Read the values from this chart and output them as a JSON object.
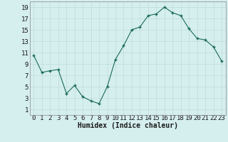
{
  "x": [
    0,
    1,
    2,
    3,
    4,
    5,
    6,
    7,
    8,
    9,
    10,
    11,
    12,
    13,
    14,
    15,
    16,
    17,
    18,
    19,
    20,
    21,
    22,
    23
  ],
  "y": [
    10.5,
    7.5,
    7.8,
    8.0,
    3.8,
    5.2,
    3.2,
    2.5,
    2.0,
    5.0,
    9.8,
    12.2,
    15.0,
    15.5,
    17.5,
    17.8,
    19.0,
    18.0,
    17.5,
    15.2,
    13.5,
    13.2,
    12.0,
    9.5
  ],
  "xlabel": "Humidex (Indice chaleur)",
  "xlim": [
    -0.5,
    23.5
  ],
  "ylim": [
    0,
    20
  ],
  "yticks": [
    1,
    3,
    5,
    7,
    9,
    11,
    13,
    15,
    17,
    19
  ],
  "xticks": [
    0,
    1,
    2,
    3,
    4,
    5,
    6,
    7,
    8,
    9,
    10,
    11,
    12,
    13,
    14,
    15,
    16,
    17,
    18,
    19,
    20,
    21,
    22,
    23
  ],
  "line_color": "#1a6b5a",
  "marker_color": "#1a6b5a",
  "bg_color": "#d5eeee",
  "grid_color": "#c0dada",
  "xlabel_fontsize": 7,
  "tick_fontsize": 6.5
}
